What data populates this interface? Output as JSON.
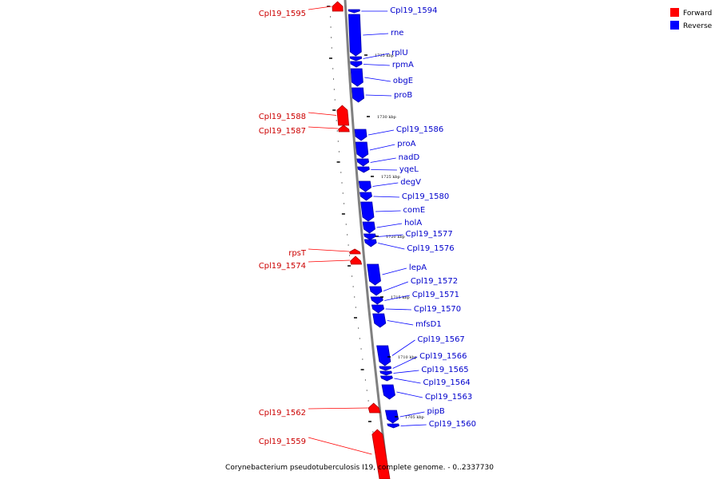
{
  "caption": "Corynebacterium pseudotuberculosis I19, complete genome. - 0..2337730",
  "legend": [
    {
      "label": "Forward",
      "color": "#ff0000"
    },
    {
      "label": "Reverse",
      "color": "#0000ff"
    }
  ],
  "colors": {
    "forward": "#ff0000",
    "forward_dark": "#aa0000",
    "reverse": "#0000ff",
    "reverse_dark": "#0000aa",
    "backbone": "#808080"
  },
  "scale_labels": [
    "1735 kbp",
    "1730 kbp",
    "1725 kbp",
    "1720 kbp",
    "1715 kbp",
    "1710 kbp",
    "1705 kbp"
  ],
  "forward_genes": [
    "Cpl19_1595",
    "Cpl19_1588",
    "Cpl19_1587",
    "rpsT",
    "Cpl19_1574",
    "Cpl19_1562",
    "Cpl19_1559"
  ],
  "reverse_genes": [
    "Cpl19_1594",
    "rne",
    "rplU",
    "rpmA",
    "obgE",
    "proB",
    "Cpl19_1586",
    "proA",
    "nadD",
    "yqeL",
    "degV",
    "Cpl19_1580",
    "comE",
    "holA",
    "Cpl19_1577",
    "Cpl19_1576",
    "lepA",
    "Cpl19_1572",
    "Cpl19_1571",
    "Cpl19_1570",
    "mfsD1",
    "Cpl19_1567",
    "Cpl19_1566",
    "Cpl19_1565",
    "Cpl19_1564",
    "Cpl19_1563",
    "pipB",
    "Cpl19_1560"
  ]
}
